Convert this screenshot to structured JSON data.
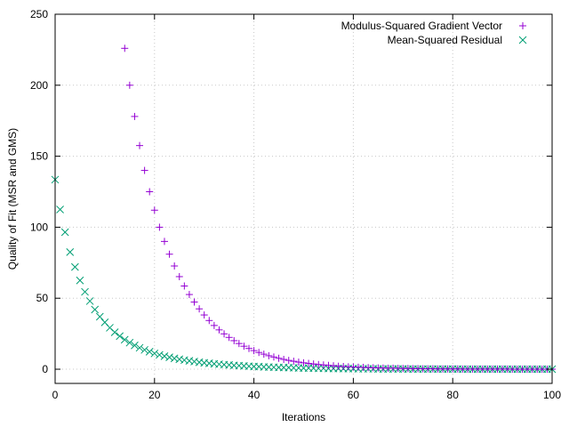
{
  "chart_data": {
    "type": "scatter",
    "title": "",
    "xlabel": "Iterations",
    "ylabel": "Quality of Fit (MSR and GMS)",
    "xlim": [
      0,
      100
    ],
    "ylim": [
      -10,
      250
    ],
    "xticks": [
      0,
      20,
      40,
      60,
      80,
      100
    ],
    "yticks": [
      0,
      50,
      100,
      150,
      200,
      250
    ],
    "grid": true,
    "legend_position": "top-right",
    "series": [
      {
        "name": "Modulus-Squared Gradient Vector",
        "marker": "plus",
        "color": "#9400d3",
        "x": [
          14,
          15,
          16,
          17,
          18,
          19,
          20,
          21,
          22,
          23,
          24,
          25,
          26,
          27,
          28,
          29,
          30,
          31,
          32,
          33,
          34,
          35,
          36,
          37,
          38,
          39,
          40,
          41,
          42,
          43,
          44,
          45,
          46,
          47,
          48,
          49,
          50,
          51,
          52,
          53,
          54,
          55,
          56,
          57,
          58,
          59,
          60,
          61,
          62,
          63,
          64,
          65,
          66,
          67,
          68,
          69,
          70,
          71,
          72,
          73,
          74,
          75,
          76,
          77,
          78,
          79,
          80,
          81,
          82,
          83,
          84,
          85,
          86,
          87,
          88,
          89,
          90,
          91,
          92,
          93,
          94,
          95,
          96,
          97,
          98,
          99,
          100
        ],
        "y": [
          226,
          200,
          178,
          157.5,
          140,
          125,
          112,
          100,
          90,
          81,
          72.7,
          65.2,
          58.6,
          52.6,
          47.3,
          42.5,
          38.2,
          34.3,
          30.8,
          27.7,
          24.9,
          22.4,
          20.1,
          18.1,
          16.2,
          14.6,
          13.1,
          11.8,
          10.6,
          9.5,
          8.6,
          7.7,
          6.9,
          6.2,
          5.6,
          5.0,
          4.5,
          4.1,
          3.7,
          3.3,
          3.0,
          2.7,
          2.4,
          2.1,
          1.9,
          1.7,
          1.6,
          1.4,
          1.3,
          1.1,
          1.0,
          0.9,
          0.8,
          0.7,
          0.7,
          0.6,
          0.5,
          0.5,
          0.4,
          0.4,
          0.3,
          0.3,
          0.3,
          0.2,
          0.2,
          0.2,
          0.2,
          0.2,
          0.1,
          0.1,
          0.1,
          0.1,
          0.1,
          0.1,
          0.1,
          0.1,
          0.1,
          0.1,
          0,
          0,
          0,
          0,
          0,
          0,
          0,
          0,
          0
        ]
      },
      {
        "name": "Mean-Squared Residual",
        "marker": "cross",
        "color": "#009e73",
        "x": [
          0,
          1,
          2,
          3,
          4,
          5,
          6,
          7,
          8,
          9,
          10,
          11,
          12,
          13,
          14,
          15,
          16,
          17,
          18,
          19,
          20,
          21,
          22,
          23,
          24,
          25,
          26,
          27,
          28,
          29,
          30,
          31,
          32,
          33,
          34,
          35,
          36,
          37,
          38,
          39,
          40,
          41,
          42,
          43,
          44,
          45,
          46,
          47,
          48,
          49,
          50,
          51,
          52,
          53,
          54,
          55,
          56,
          57,
          58,
          59,
          60,
          61,
          62,
          63,
          64,
          65,
          66,
          67,
          68,
          69,
          70,
          71,
          72,
          73,
          74,
          75,
          76,
          77,
          78,
          79,
          80,
          81,
          82,
          83,
          84,
          85,
          86,
          87,
          88,
          89,
          90,
          91,
          92,
          93,
          94,
          95,
          96,
          97,
          98,
          99,
          100
        ],
        "y": [
          133.5,
          112.5,
          96.5,
          82.5,
          72,
          62.5,
          54.5,
          48,
          42,
          37,
          33,
          29.2,
          26,
          23.3,
          20.8,
          18.7,
          16.8,
          15.1,
          13.6,
          12.3,
          11.1,
          10.1,
          9.2,
          8.4,
          7.6,
          7.0,
          6.4,
          5.9,
          5.4,
          4.9,
          4.5,
          4.2,
          3.8,
          3.5,
          3.2,
          3.0,
          2.7,
          2.5,
          2.3,
          2.1,
          1.9,
          1.8,
          1.6,
          1.5,
          1.4,
          1.3,
          1.2,
          1.1,
          1.0,
          0.9,
          0.8,
          0.8,
          0.7,
          0.6,
          0.6,
          0.5,
          0.5,
          0.5,
          0.4,
          0.4,
          0.4,
          0.3,
          0.3,
          0.3,
          0.3,
          0.2,
          0.2,
          0.2,
          0.2,
          0.2,
          0.2,
          0.1,
          0.1,
          0.1,
          0.1,
          0.1,
          0.1,
          0.1,
          0.1,
          0.1,
          0.1,
          0.1,
          0,
          0,
          0,
          0,
          0,
          0,
          0,
          0,
          0,
          0,
          0,
          0,
          0,
          0,
          0,
          0,
          0,
          0,
          0
        ]
      }
    ]
  }
}
